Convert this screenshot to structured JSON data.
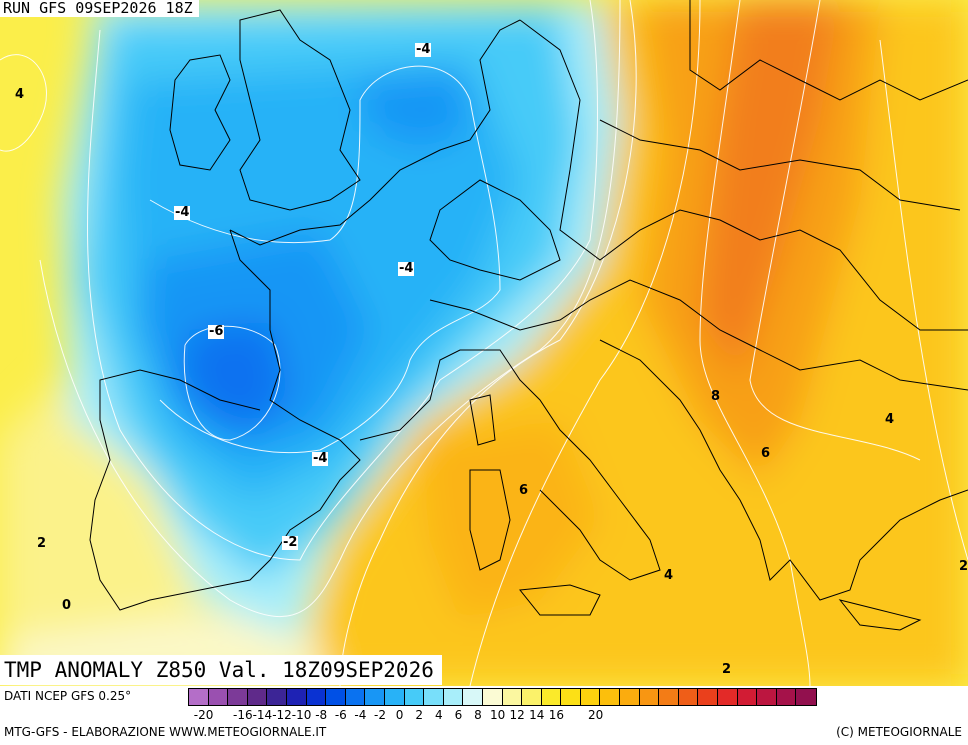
{
  "header": {
    "run": "RUN GFS 09SEP2026 18Z"
  },
  "title": "TMP ANOMALY Z850 Val. 18Z09SEP2026",
  "map": {
    "contour_labels": [
      {
        "text": "-4",
        "boxed": true
      },
      {
        "text": "4",
        "boxed": false
      },
      {
        "text": "-4",
        "boxed": true
      },
      {
        "text": "-4",
        "boxed": true
      },
      {
        "text": "-6",
        "boxed": true
      },
      {
        "text": "8",
        "boxed": false
      },
      {
        "text": "4",
        "boxed": false
      },
      {
        "text": "6",
        "boxed": false
      },
      {
        "text": "-4",
        "boxed": true
      },
      {
        "text": "6",
        "boxed": false
      },
      {
        "text": "2",
        "boxed": false
      },
      {
        "text": "-2",
        "boxed": true
      },
      {
        "text": "4",
        "boxed": false
      },
      {
        "text": "2",
        "boxed": false
      },
      {
        "text": "0",
        "boxed": false
      },
      {
        "text": "2",
        "boxed": false
      }
    ]
  },
  "legend": {
    "source": "DATI NCEP GFS 0.25°",
    "colors": [
      "#b46ec8",
      "#9a50b0",
      "#7c3a98",
      "#5f2a8a",
      "#3c2596",
      "#1e22b4",
      "#0a32d2",
      "#0050e6",
      "#0a72f0",
      "#1896f5",
      "#28b2f7",
      "#46cbf8",
      "#78dffa",
      "#a8eefa",
      "#d8f8f8",
      "#fbfbd4",
      "#fbf7a0",
      "#fbf26a",
      "#fbea2a",
      "#fce016",
      "#fdd10e",
      "#fcbf0c",
      "#fbac0e",
      "#f89612",
      "#f37c16",
      "#ef5e18",
      "#ea401c",
      "#e32a28",
      "#d21c34",
      "#bc1640",
      "#a5124a",
      "#92104e"
    ],
    "ticks": [
      "-20",
      "-18",
      "-16",
      "-14",
      "-12",
      "-10",
      "-8",
      "-6",
      "-4",
      "-2",
      "0",
      "2",
      "4",
      "6",
      "8",
      "10",
      "12",
      "14",
      "16",
      "18",
      "20"
    ],
    "tick_labels_shown": [
      "-20",
      "-16",
      "-14",
      "-12",
      "-10",
      "-8",
      "-6",
      "-4",
      "-2",
      "0",
      "2",
      "4",
      "6",
      "8",
      "10",
      "12",
      "14",
      "16",
      "20"
    ]
  },
  "footer": {
    "left": "MTG-GFS - ELABORAZIONE WWW.METEOGIORNALE.IT",
    "right": "(C) METEOGIORNALE"
  }
}
